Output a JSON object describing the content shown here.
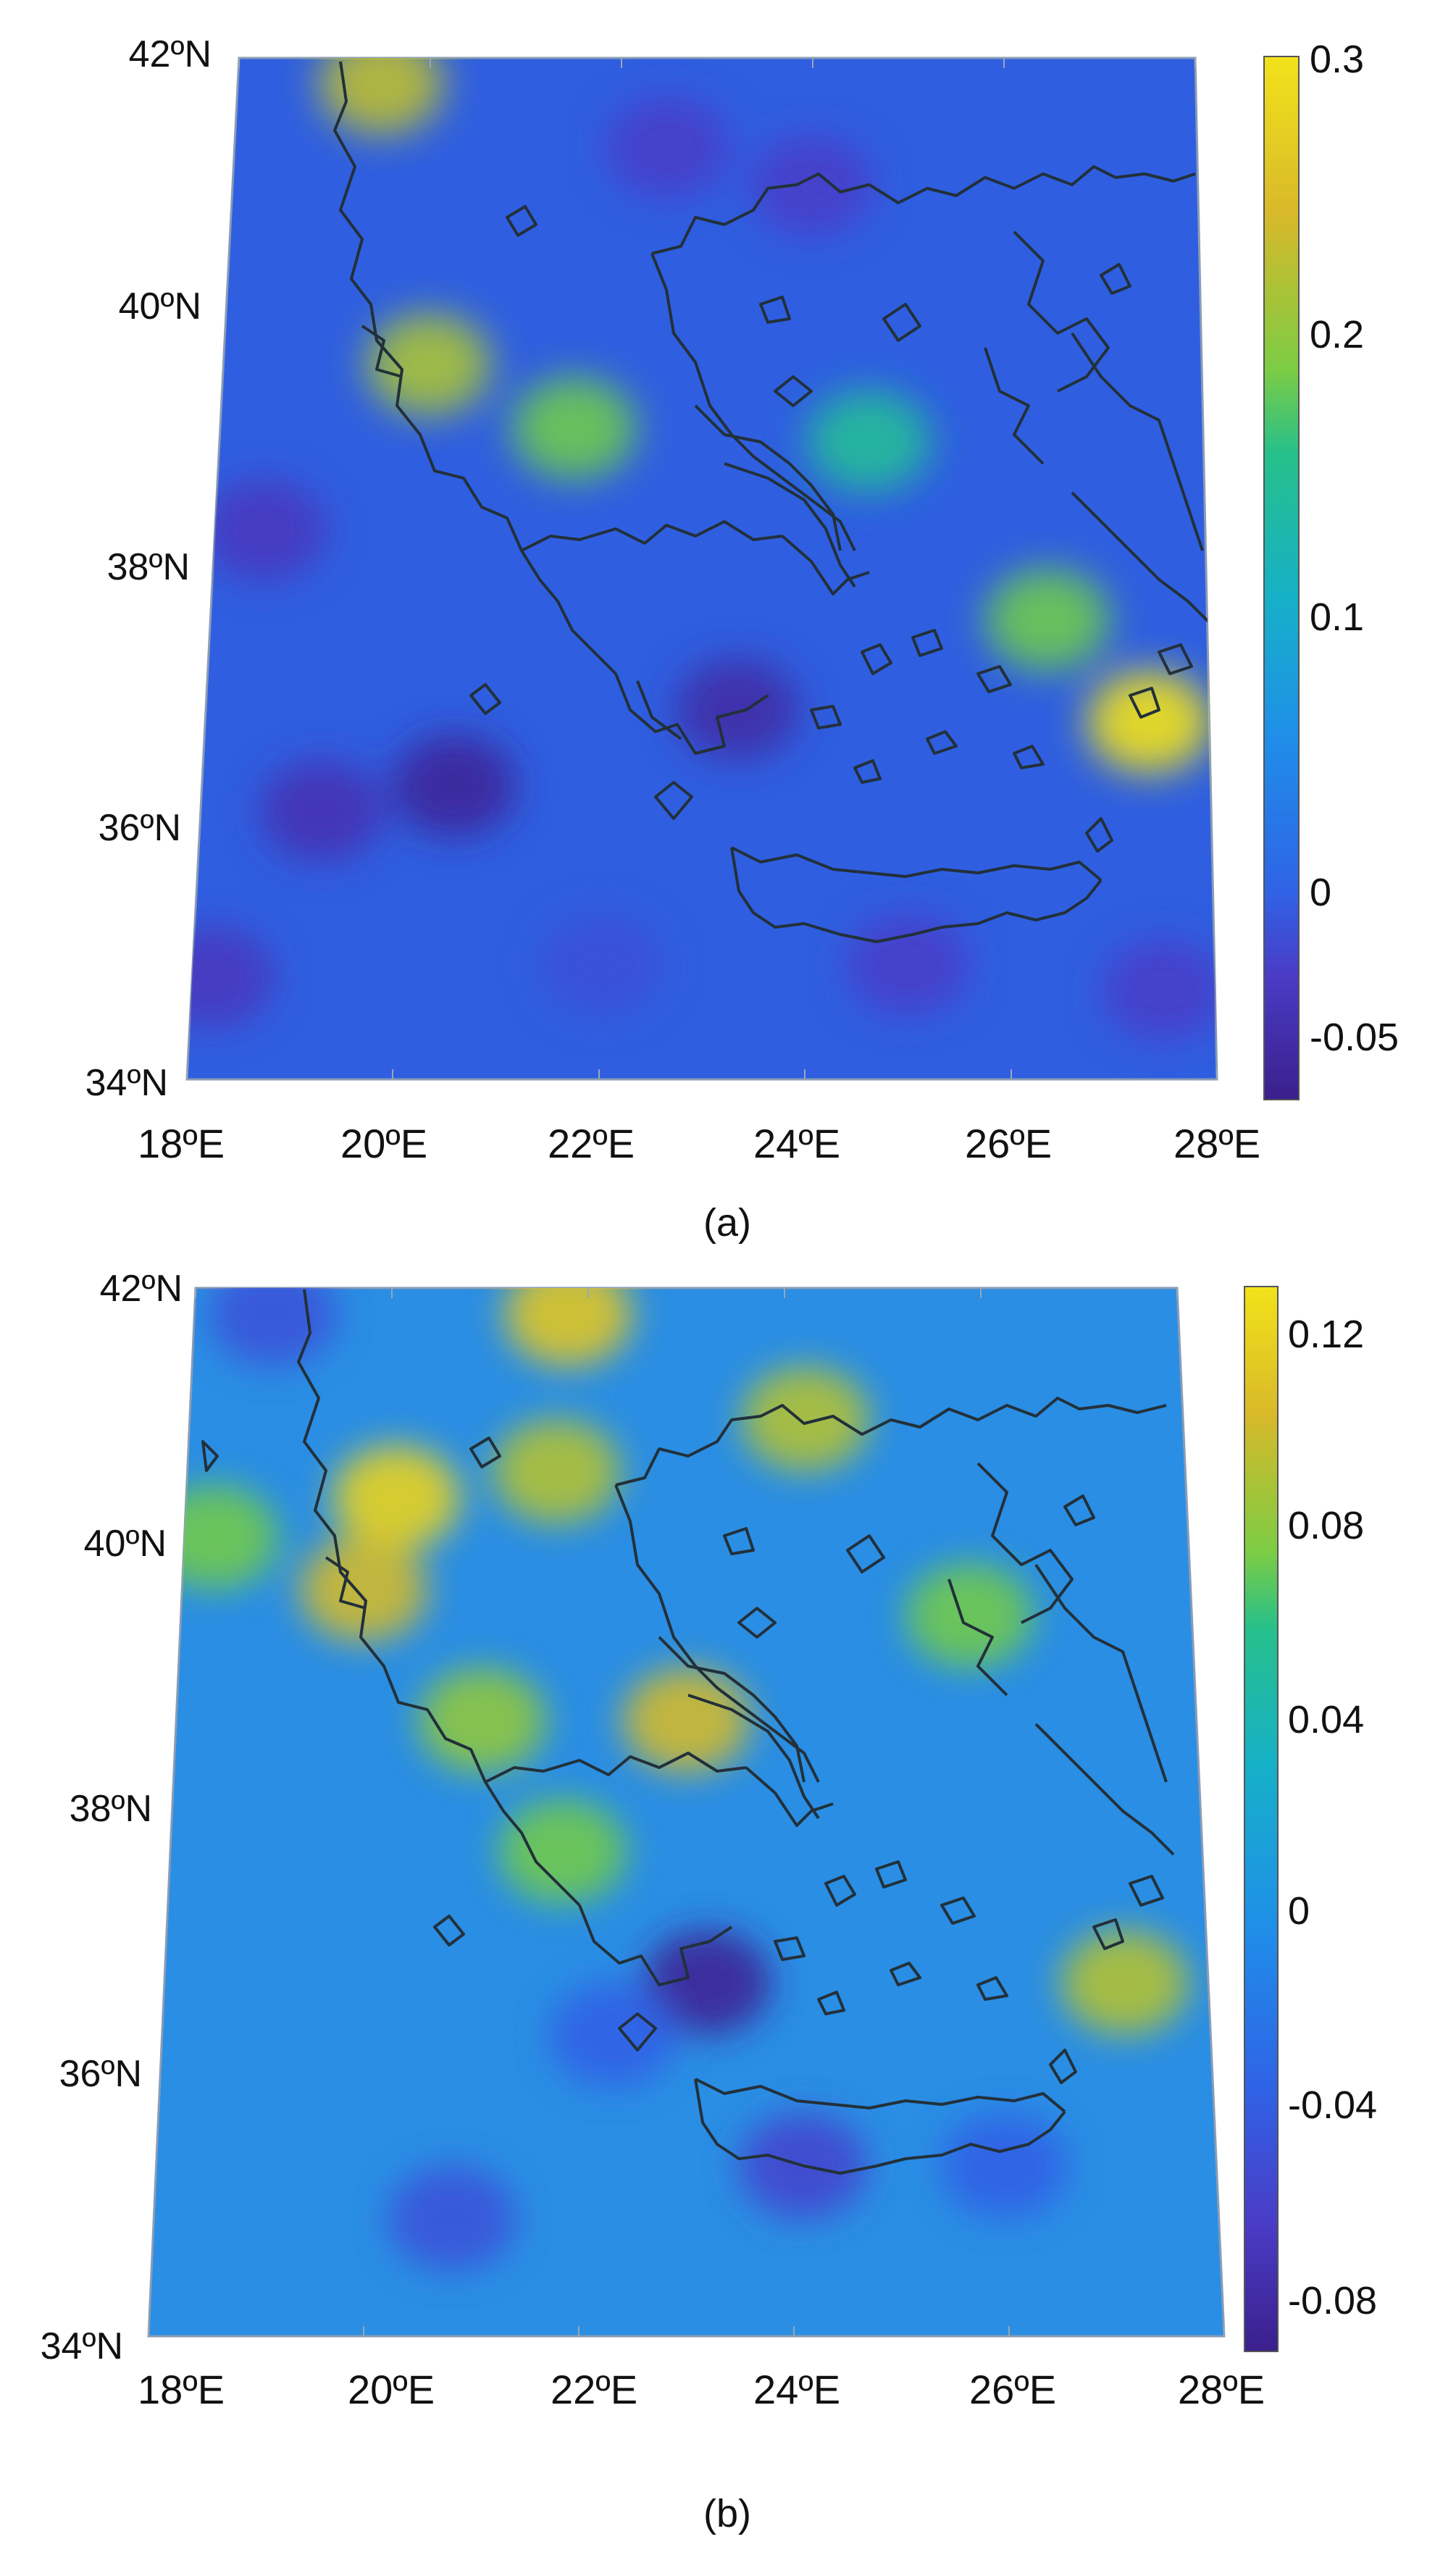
{
  "figure": {
    "panels": [
      {
        "id": "a",
        "label": "(a)",
        "colorbar_ticks": [
          "0.3",
          "0.2",
          "0.1",
          "0",
          "-0.05"
        ],
        "x_ticks": [
          "18ºE",
          "20ºE",
          "22ºE",
          "24ºE",
          "26ºE",
          "28ºE"
        ],
        "y_ticks": [
          "42ºN",
          "40ºN",
          "38ºN",
          "36ºN",
          "34ºN"
        ]
      },
      {
        "id": "b",
        "label": "(b)",
        "colorbar_ticks": [
          "0.12",
          "0.08",
          "0.04",
          "0",
          "-0.04",
          "-0.08"
        ],
        "x_ticks": [
          "18ºE",
          "20ºE",
          "22ºE",
          "24ºE",
          "26ºE",
          "28ºE"
        ],
        "y_ticks": [
          "42ºN",
          "40ºN",
          "38ºN",
          "36ºN",
          "34ºN"
        ]
      }
    ]
  },
  "colormap": [
    "#3b1f8c",
    "#4a3cc6",
    "#2f63e6",
    "#1f8fe8",
    "#16b0c8",
    "#27c08a",
    "#7ccc44",
    "#d8b92a",
    "#f2e21a"
  ],
  "chart_data": [
    {
      "type": "heatmap",
      "panel": "a",
      "title": "",
      "xlabel": "",
      "ylabel": "",
      "xlim": [
        18,
        28
      ],
      "ylim": [
        34,
        42
      ],
      "colorbar_range": [
        -0.07,
        0.3
      ],
      "colorbar_ticks": [
        0.3,
        0.2,
        0.1,
        0,
        -0.05
      ],
      "anomalies": [
        {
          "lon": 19.5,
          "lat": 41.8,
          "value": 0.24
        },
        {
          "lon": 20.1,
          "lat": 39.6,
          "value": 0.23
        },
        {
          "lon": 21.6,
          "lat": 39.1,
          "value": 0.2
        },
        {
          "lon": 24.6,
          "lat": 39.0,
          "value": 0.15
        },
        {
          "lon": 26.4,
          "lat": 37.6,
          "value": 0.2
        },
        {
          "lon": 27.4,
          "lat": 36.8,
          "value": 0.3
        },
        {
          "lon": 20.5,
          "lat": 36.3,
          "value": -0.06
        },
        {
          "lon": 19.2,
          "lat": 36.1,
          "value": -0.04
        },
        {
          "lon": 18.5,
          "lat": 38.3,
          "value": -0.03
        },
        {
          "lon": 23.3,
          "lat": 36.9,
          "value": -0.05
        },
        {
          "lon": 24.0,
          "lat": 41.0,
          "value": -0.02
        },
        {
          "lon": 22.5,
          "lat": 41.3,
          "value": -0.02
        },
        {
          "lon": 18.2,
          "lat": 34.8,
          "value": -0.03
        },
        {
          "lon": 25.0,
          "lat": 34.9,
          "value": -0.02
        },
        {
          "lon": 27.5,
          "lat": 34.7,
          "value": -0.02
        },
        {
          "lon": 22.0,
          "lat": 34.9,
          "value": 0.0
        }
      ]
    },
    {
      "type": "heatmap",
      "panel": "b",
      "title": "",
      "xlabel": "",
      "ylabel": "",
      "xlim": [
        18,
        28
      ],
      "ylim": [
        34,
        42
      ],
      "colorbar_range": [
        -0.095,
        0.13
      ],
      "colorbar_ticks": [
        0.12,
        0.08,
        0.04,
        0,
        -0.04,
        -0.08
      ],
      "anomalies": [
        {
          "lon": 20.1,
          "lat": 40.4,
          "value": 0.12
        },
        {
          "lon": 19.8,
          "lat": 39.7,
          "value": 0.1
        },
        {
          "lon": 18.3,
          "lat": 40.1,
          "value": 0.07
        },
        {
          "lon": 21.8,
          "lat": 41.8,
          "value": 0.11
        },
        {
          "lon": 21.7,
          "lat": 40.6,
          "value": 0.09
        },
        {
          "lon": 23.0,
          "lat": 38.7,
          "value": 0.1
        },
        {
          "lon": 24.2,
          "lat": 41.0,
          "value": 0.09
        },
        {
          "lon": 21.0,
          "lat": 38.7,
          "value": 0.08
        },
        {
          "lon": 21.8,
          "lat": 37.7,
          "value": 0.07
        },
        {
          "lon": 25.8,
          "lat": 39.5,
          "value": 0.07
        },
        {
          "lon": 27.2,
          "lat": 36.7,
          "value": 0.09
        },
        {
          "lon": 23.2,
          "lat": 36.7,
          "value": -0.09
        },
        {
          "lon": 24.1,
          "lat": 35.3,
          "value": -0.06
        },
        {
          "lon": 22.3,
          "lat": 36.3,
          "value": -0.04
        },
        {
          "lon": 18.8,
          "lat": 41.8,
          "value": -0.05
        },
        {
          "lon": 20.8,
          "lat": 34.9,
          "value": -0.05
        },
        {
          "lon": 26.0,
          "lat": 35.3,
          "value": -0.04
        }
      ]
    }
  ]
}
